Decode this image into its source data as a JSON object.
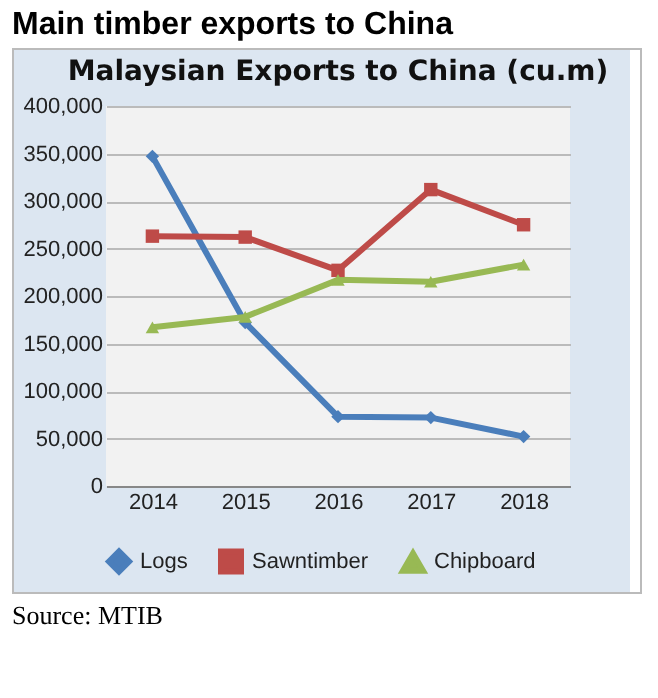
{
  "chart_data": {
    "type": "line",
    "title": "Main timber exports to China",
    "subtitle": "Malaysian Exports to China (cu.m)",
    "categories": [
      "2014",
      "2015",
      "2016",
      "2017",
      "2018"
    ],
    "series": [
      {
        "name": "Logs",
        "color": "#4a7ebb",
        "marker": "diamond",
        "values": [
          347000,
          172000,
          73000,
          72000,
          52000
        ]
      },
      {
        "name": "Sawntimber",
        "color": "#be4b48",
        "marker": "square",
        "values": [
          263000,
          262000,
          227000,
          312000,
          275000
        ]
      },
      {
        "name": "Chipboard",
        "color": "#98b954",
        "marker": "triangle",
        "values": [
          167000,
          178000,
          217000,
          215000,
          233000
        ]
      }
    ],
    "ylim": [
      0,
      400000
    ],
    "yticks": [
      0,
      {
        "value": 50000,
        "label": "50,000"
      },
      {
        "value": 100000,
        "label": "100,000"
      },
      {
        "value": 150000,
        "label": "150,000"
      },
      {
        "value": 200000,
        "label": "200,000"
      },
      {
        "value": 250000,
        "label": "250,000"
      },
      {
        "value": 300000,
        "label": "300,000"
      },
      {
        "value": 350000,
        "label": "350,000"
      },
      {
        "value": 400000,
        "label": "400,000"
      }
    ],
    "grid": "y",
    "legend": "bottom",
    "line_style": "solid",
    "annotations": [
      "Source: MTIB"
    ]
  }
}
